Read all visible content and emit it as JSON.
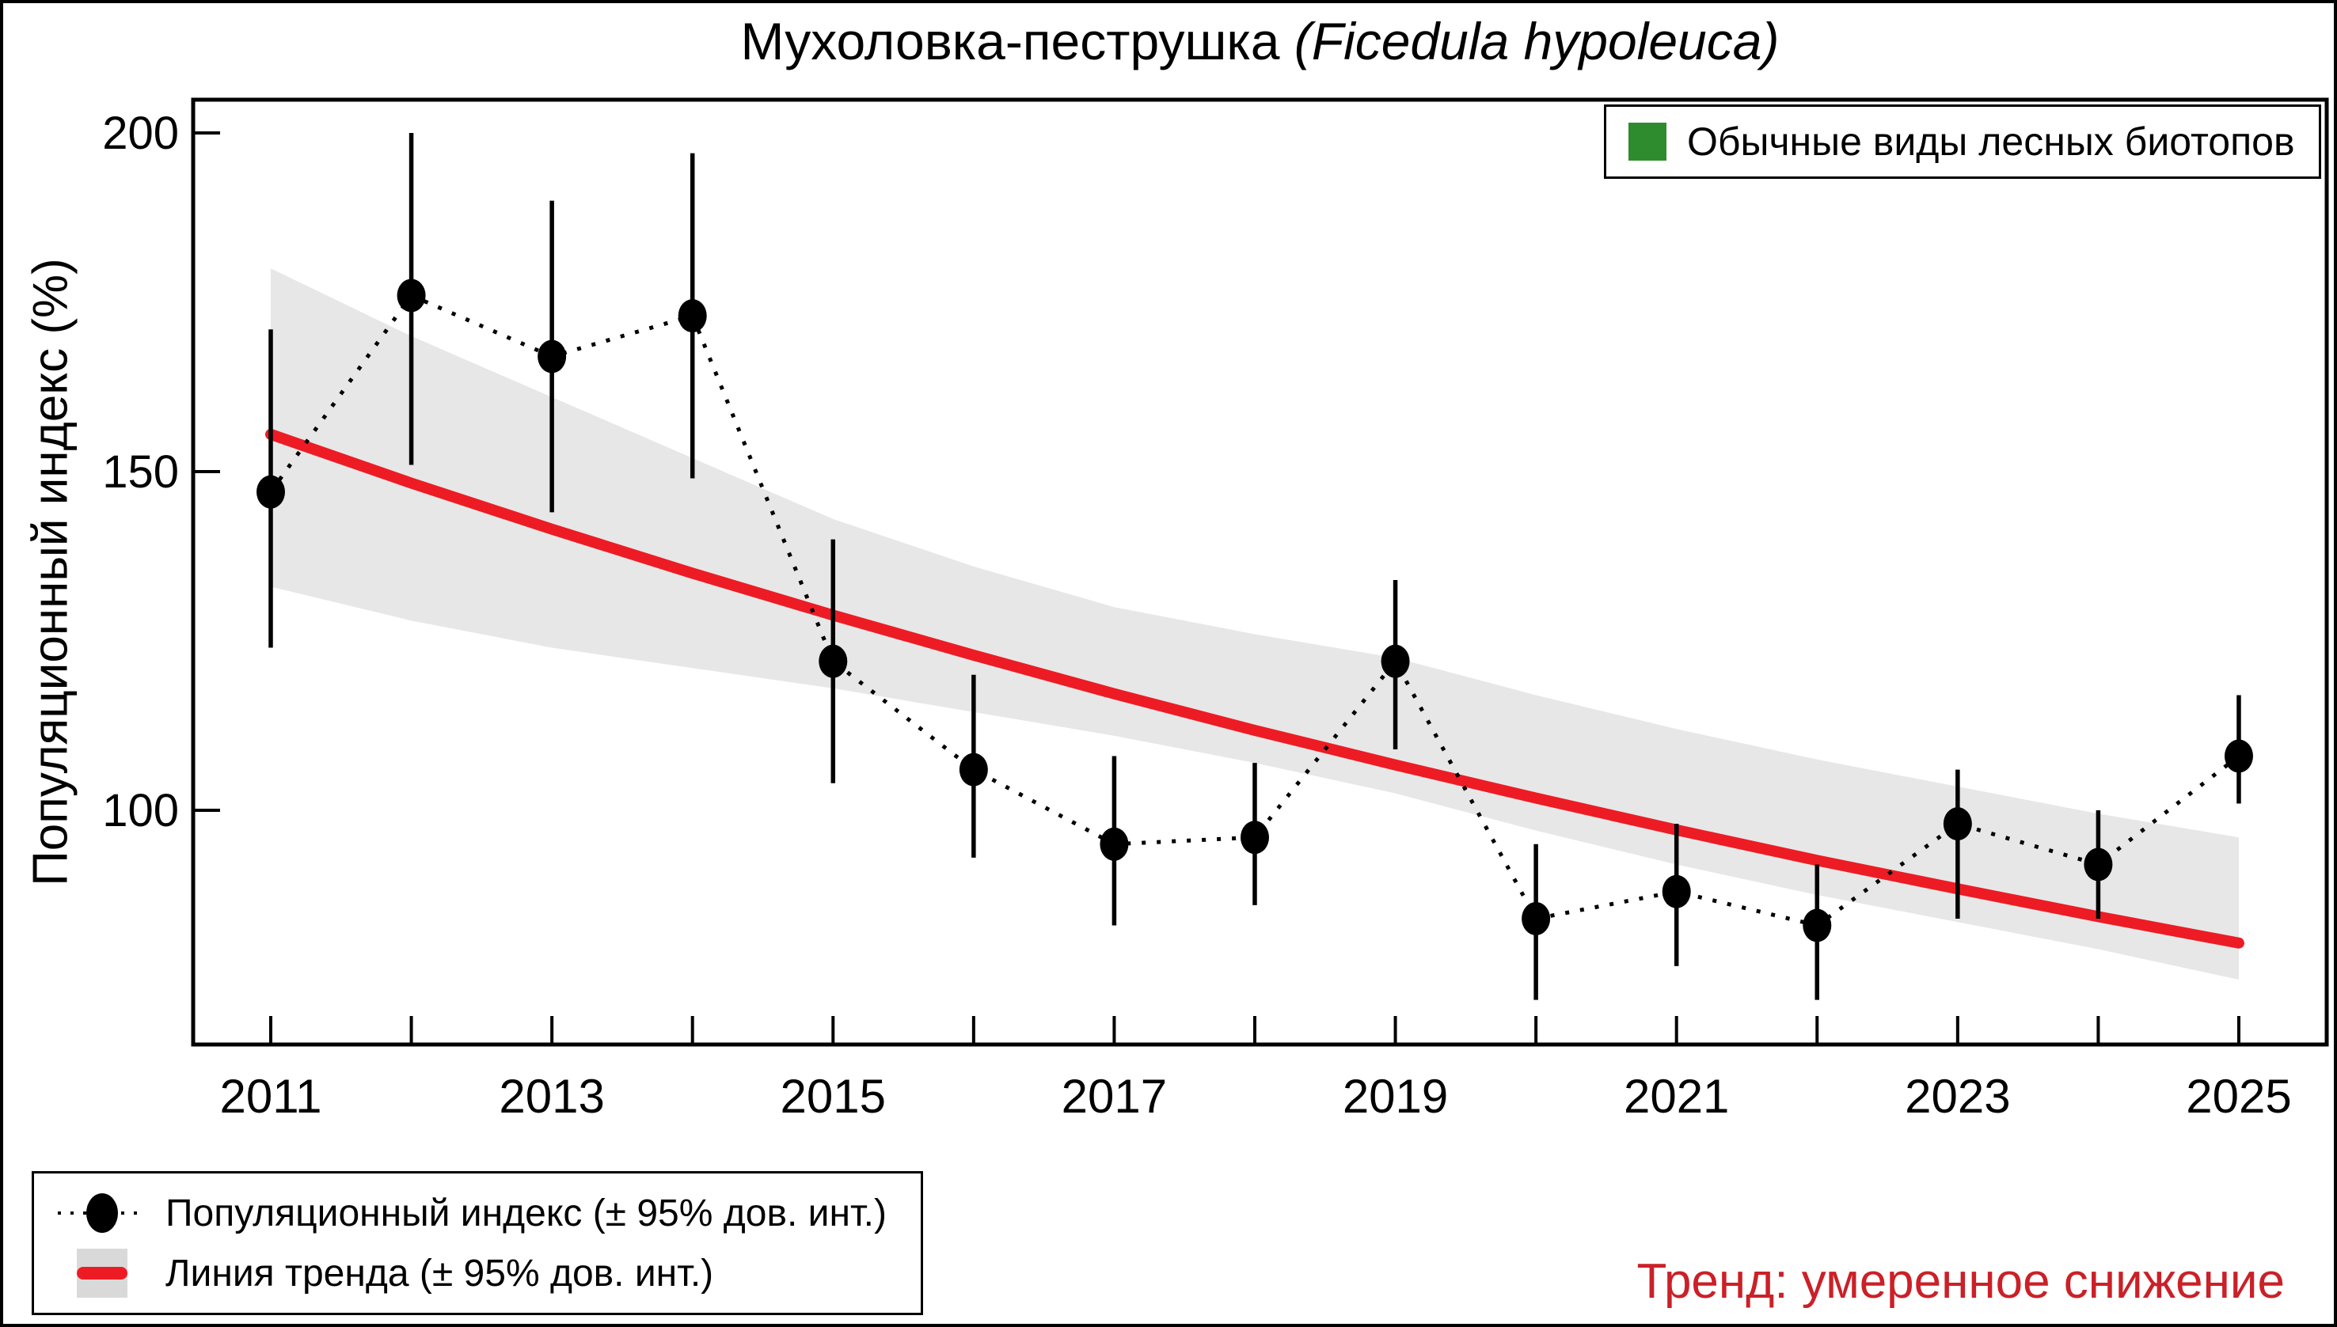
{
  "title": {
    "common_name": "Мухоловка-пеструшка",
    "latin_name": "(Ficedula hypoleuca)"
  },
  "y_axis": {
    "label": "Популяционный индекс (%)",
    "tick_values": [
      200,
      150,
      100
    ],
    "tick_labels": [
      "200",
      "150",
      "100"
    ]
  },
  "x_axis": {
    "tick_years": [
      2011,
      2012,
      2013,
      2014,
      2015,
      2016,
      2017,
      2018,
      2019,
      2020,
      2021,
      2022,
      2023,
      2024,
      2025
    ],
    "labeled_years": [
      2011,
      2013,
      2015,
      2017,
      2019,
      2021,
      2023,
      2025
    ]
  },
  "legend_top": {
    "label": "Обычные виды лесных биотопов",
    "swatch_color": "#2e8b2e"
  },
  "legend_bottom": {
    "index_label": "Популяционный индекс (± 95% дов. инт.)",
    "trend_label": "Линия тренда (± 95% дов. инт.)"
  },
  "trend_note": {
    "text": "Тренд: умеренное снижение",
    "color": "#cb2027"
  },
  "colors": {
    "point": "#000000",
    "error_bar": "#000000",
    "dotted_line": "#000000",
    "trend_line": "#ed1c24",
    "confidence_band": "#e7e7e7",
    "frame": "#000000",
    "legend_trend_bg": "#d9d9d9"
  },
  "chart_data": {
    "type": "line",
    "x": [
      2011,
      2012,
      2013,
      2014,
      2015,
      2016,
      2017,
      2018,
      2019,
      2020,
      2021,
      2022,
      2023,
      2024,
      2025
    ],
    "series": [
      {
        "name": "Популяционный индекс (± 95% дов. инт.)",
        "values": [
          147,
          176,
          167,
          173,
          122,
          106,
          95,
          96,
          122,
          84,
          88,
          83,
          98,
          92,
          108
        ],
        "ci_low": [
          124,
          151,
          144,
          149,
          104,
          93,
          83,
          86,
          109,
          72,
          77,
          72,
          84,
          84,
          101
        ],
        "ci_high": [
          171,
          200,
          190,
          197,
          140,
          120,
          108,
          107,
          134,
          95,
          98,
          92,
          106,
          100,
          117
        ],
        "style": "dotted-line-with-points"
      },
      {
        "name": "Линия тренда (± 95% дов. инт.)",
        "values": [
          155.5,
          148.3,
          141.5,
          135.0,
          128.8,
          122.9,
          117.2,
          111.8,
          106.7,
          101.8,
          97.1,
          92.6,
          88.4,
          84.3,
          80.4
        ],
        "band_low": [
          133,
          128,
          124,
          121,
          118,
          114.5,
          111,
          107,
          102.5,
          97,
          92,
          87.5,
          83.5,
          79.5,
          75
        ],
        "band_high": [
          180,
          170,
          161,
          152,
          143,
          136,
          130,
          126,
          122.5,
          117,
          112,
          107.5,
          103.5,
          99.5,
          96
        ],
        "style": "solid-line-with-band"
      }
    ],
    "title": "Мухоловка-пеструшка (Ficedula hypoleuca)",
    "xlabel": "",
    "ylabel": "Популяционный индекс (%)",
    "ylim": [
      65,
      205
    ],
    "xlim": [
      2010.45,
      2025.6
    ],
    "grid": false,
    "legend_position": "bottom-left and top-right"
  }
}
